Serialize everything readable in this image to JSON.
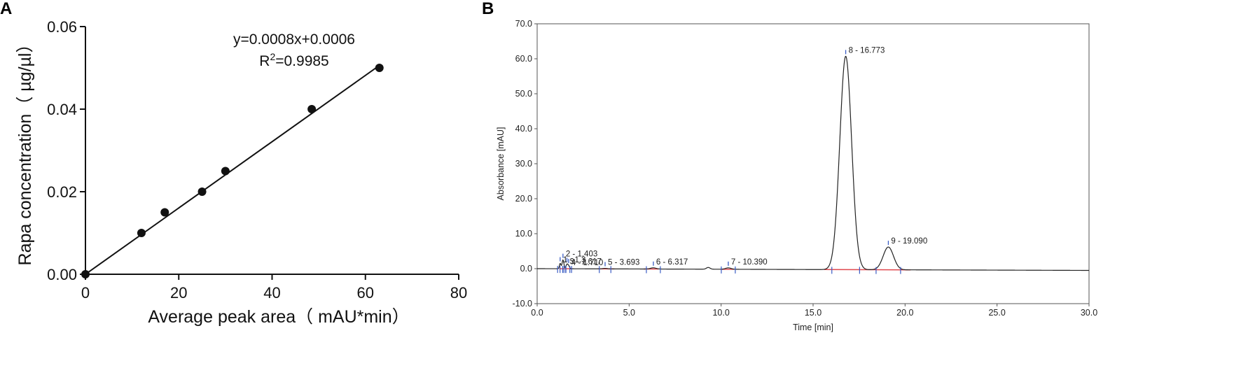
{
  "panels": [
    {
      "letter": "A"
    },
    {
      "letter": "B"
    }
  ],
  "colors": {
    "line": "#111111",
    "marker": "#111111",
    "chromatogram": "#222222",
    "baseline": "#e0484e",
    "peak_marker": "#3a5cc4"
  },
  "chart_data": [
    {
      "type": "scatter",
      "title": "",
      "xlabel": "Average peak area（ mAU*min）",
      "ylabel": "Rapa concentration（ µg/µl）",
      "xlim": [
        0,
        80
      ],
      "ylim": [
        0,
        0.06
      ],
      "x_ticks": [
        "0",
        "20",
        "40",
        "60",
        "80"
      ],
      "y_ticks": [
        "0.00",
        "0.02",
        "0.04",
        "0.06"
      ],
      "grid": false,
      "series": [
        {
          "points": [
            [
              0,
              0.0
            ],
            [
              12,
              0.01
            ],
            [
              17,
              0.015
            ],
            [
              25,
              0.02
            ],
            [
              30,
              0.025
            ],
            [
              48.5,
              0.04
            ],
            [
              63,
              0.05
            ]
          ]
        }
      ],
      "fit_line": {
        "x_range": [
          0,
          63
        ],
        "slope": 0.0008,
        "intercept": 0.0006
      },
      "annotations": {
        "equation": "y=0.0008x+0.0006",
        "r2_prefix": "R",
        "r2_sup": "2",
        "r2_value": "=0.9985"
      }
    },
    {
      "type": "line",
      "title": "",
      "xlabel": "Time [min]",
      "ylabel": "Absorbance [mAU]",
      "xlim": [
        0,
        30
      ],
      "ylim": [
        -10,
        70
      ],
      "x_ticks": [
        "0.0",
        "5.0",
        "10.0",
        "15.0",
        "20.0",
        "25.0",
        "30.0"
      ],
      "y_ticks": [
        "-10.0",
        "0.0",
        "10.0",
        "20.0",
        "30.0",
        "40.0",
        "50.0",
        "60.0",
        "70.0"
      ],
      "grid": false,
      "baseline_drift": {
        "start": 0.0,
        "end": -0.5
      },
      "peaks": [
        {
          "label": "1 - 1.3",
          "rt": 1.25,
          "height": 1.5,
          "width": 0.04
        },
        {
          "label": "2 - 1.403",
          "rt": 1.403,
          "height": 2.5,
          "width": 0.05
        },
        {
          "label": "3 - 1.617",
          "rt": 1.617,
          "height": 1.2,
          "width": 0.05
        },
        {
          "label": "4 - 1.710",
          "rt": 1.71,
          "height": 0.8,
          "width": 0.05
        },
        {
          "label": "5 - 3.693",
          "rt": 3.693,
          "height": 0.15,
          "width": 0.12
        },
        {
          "label": "6 - 6.317",
          "rt": 6.317,
          "height": 0.35,
          "width": 0.15
        },
        {
          "label": "7 - 10.390",
          "rt": 10.39,
          "height": 0.4,
          "width": 0.15
        },
        {
          "label": "8 - 16.773",
          "rt": 16.773,
          "height": 61.0,
          "width": 0.32
        },
        {
          "label": "9 - 19.090",
          "rt": 19.09,
          "height": 6.5,
          "width": 0.28
        }
      ],
      "minor_bump": {
        "rt": 9.3,
        "height": 0.5,
        "width": 0.1
      }
    }
  ]
}
